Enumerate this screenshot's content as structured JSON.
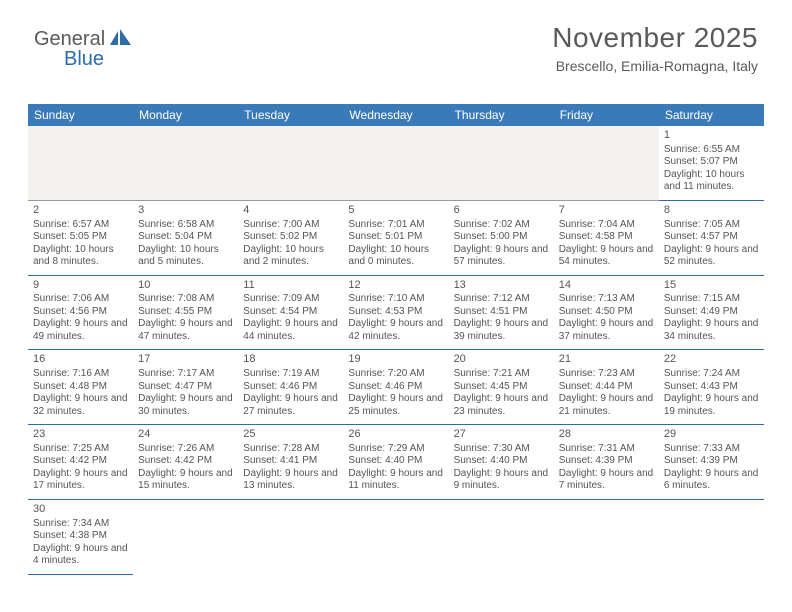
{
  "logo": {
    "part1": "General",
    "part2": "Blue"
  },
  "header": {
    "title": "November 2025",
    "location": "Brescello, Emilia-Romagna, Italy"
  },
  "colors": {
    "header_bg": "#3b7ab8",
    "header_text": "#ffffff",
    "cell_border": "#2e6ca8",
    "empty_bg": "#f3f2ef",
    "text": "#555555",
    "page_bg": "#ffffff"
  },
  "weekdays": [
    "Sunday",
    "Monday",
    "Tuesday",
    "Wednesday",
    "Thursday",
    "Friday",
    "Saturday"
  ],
  "first_weekday_index": 6,
  "num_days": 30,
  "days": {
    "1": {
      "sunrise": "6:55 AM",
      "sunset": "5:07 PM",
      "daylight": "10 hours and 11 minutes."
    },
    "2": {
      "sunrise": "6:57 AM",
      "sunset": "5:05 PM",
      "daylight": "10 hours and 8 minutes."
    },
    "3": {
      "sunrise": "6:58 AM",
      "sunset": "5:04 PM",
      "daylight": "10 hours and 5 minutes."
    },
    "4": {
      "sunrise": "7:00 AM",
      "sunset": "5:02 PM",
      "daylight": "10 hours and 2 minutes."
    },
    "5": {
      "sunrise": "7:01 AM",
      "sunset": "5:01 PM",
      "daylight": "10 hours and 0 minutes."
    },
    "6": {
      "sunrise": "7:02 AM",
      "sunset": "5:00 PM",
      "daylight": "9 hours and 57 minutes."
    },
    "7": {
      "sunrise": "7:04 AM",
      "sunset": "4:58 PM",
      "daylight": "9 hours and 54 minutes."
    },
    "8": {
      "sunrise": "7:05 AM",
      "sunset": "4:57 PM",
      "daylight": "9 hours and 52 minutes."
    },
    "9": {
      "sunrise": "7:06 AM",
      "sunset": "4:56 PM",
      "daylight": "9 hours and 49 minutes."
    },
    "10": {
      "sunrise": "7:08 AM",
      "sunset": "4:55 PM",
      "daylight": "9 hours and 47 minutes."
    },
    "11": {
      "sunrise": "7:09 AM",
      "sunset": "4:54 PM",
      "daylight": "9 hours and 44 minutes."
    },
    "12": {
      "sunrise": "7:10 AM",
      "sunset": "4:53 PM",
      "daylight": "9 hours and 42 minutes."
    },
    "13": {
      "sunrise": "7:12 AM",
      "sunset": "4:51 PM",
      "daylight": "9 hours and 39 minutes."
    },
    "14": {
      "sunrise": "7:13 AM",
      "sunset": "4:50 PM",
      "daylight": "9 hours and 37 minutes."
    },
    "15": {
      "sunrise": "7:15 AM",
      "sunset": "4:49 PM",
      "daylight": "9 hours and 34 minutes."
    },
    "16": {
      "sunrise": "7:16 AM",
      "sunset": "4:48 PM",
      "daylight": "9 hours and 32 minutes."
    },
    "17": {
      "sunrise": "7:17 AM",
      "sunset": "4:47 PM",
      "daylight": "9 hours and 30 minutes."
    },
    "18": {
      "sunrise": "7:19 AM",
      "sunset": "4:46 PM",
      "daylight": "9 hours and 27 minutes."
    },
    "19": {
      "sunrise": "7:20 AM",
      "sunset": "4:46 PM",
      "daylight": "9 hours and 25 minutes."
    },
    "20": {
      "sunrise": "7:21 AM",
      "sunset": "4:45 PM",
      "daylight": "9 hours and 23 minutes."
    },
    "21": {
      "sunrise": "7:23 AM",
      "sunset": "4:44 PM",
      "daylight": "9 hours and 21 minutes."
    },
    "22": {
      "sunrise": "7:24 AM",
      "sunset": "4:43 PM",
      "daylight": "9 hours and 19 minutes."
    },
    "23": {
      "sunrise": "7:25 AM",
      "sunset": "4:42 PM",
      "daylight": "9 hours and 17 minutes."
    },
    "24": {
      "sunrise": "7:26 AM",
      "sunset": "4:42 PM",
      "daylight": "9 hours and 15 minutes."
    },
    "25": {
      "sunrise": "7:28 AM",
      "sunset": "4:41 PM",
      "daylight": "9 hours and 13 minutes."
    },
    "26": {
      "sunrise": "7:29 AM",
      "sunset": "4:40 PM",
      "daylight": "9 hours and 11 minutes."
    },
    "27": {
      "sunrise": "7:30 AM",
      "sunset": "4:40 PM",
      "daylight": "9 hours and 9 minutes."
    },
    "28": {
      "sunrise": "7:31 AM",
      "sunset": "4:39 PM",
      "daylight": "9 hours and 7 minutes."
    },
    "29": {
      "sunrise": "7:33 AM",
      "sunset": "4:39 PM",
      "daylight": "9 hours and 6 minutes."
    },
    "30": {
      "sunrise": "7:34 AM",
      "sunset": "4:38 PM",
      "daylight": "9 hours and 4 minutes."
    }
  },
  "labels": {
    "sunrise_prefix": "Sunrise: ",
    "sunset_prefix": "Sunset: ",
    "daylight_prefix": "Daylight: "
  }
}
